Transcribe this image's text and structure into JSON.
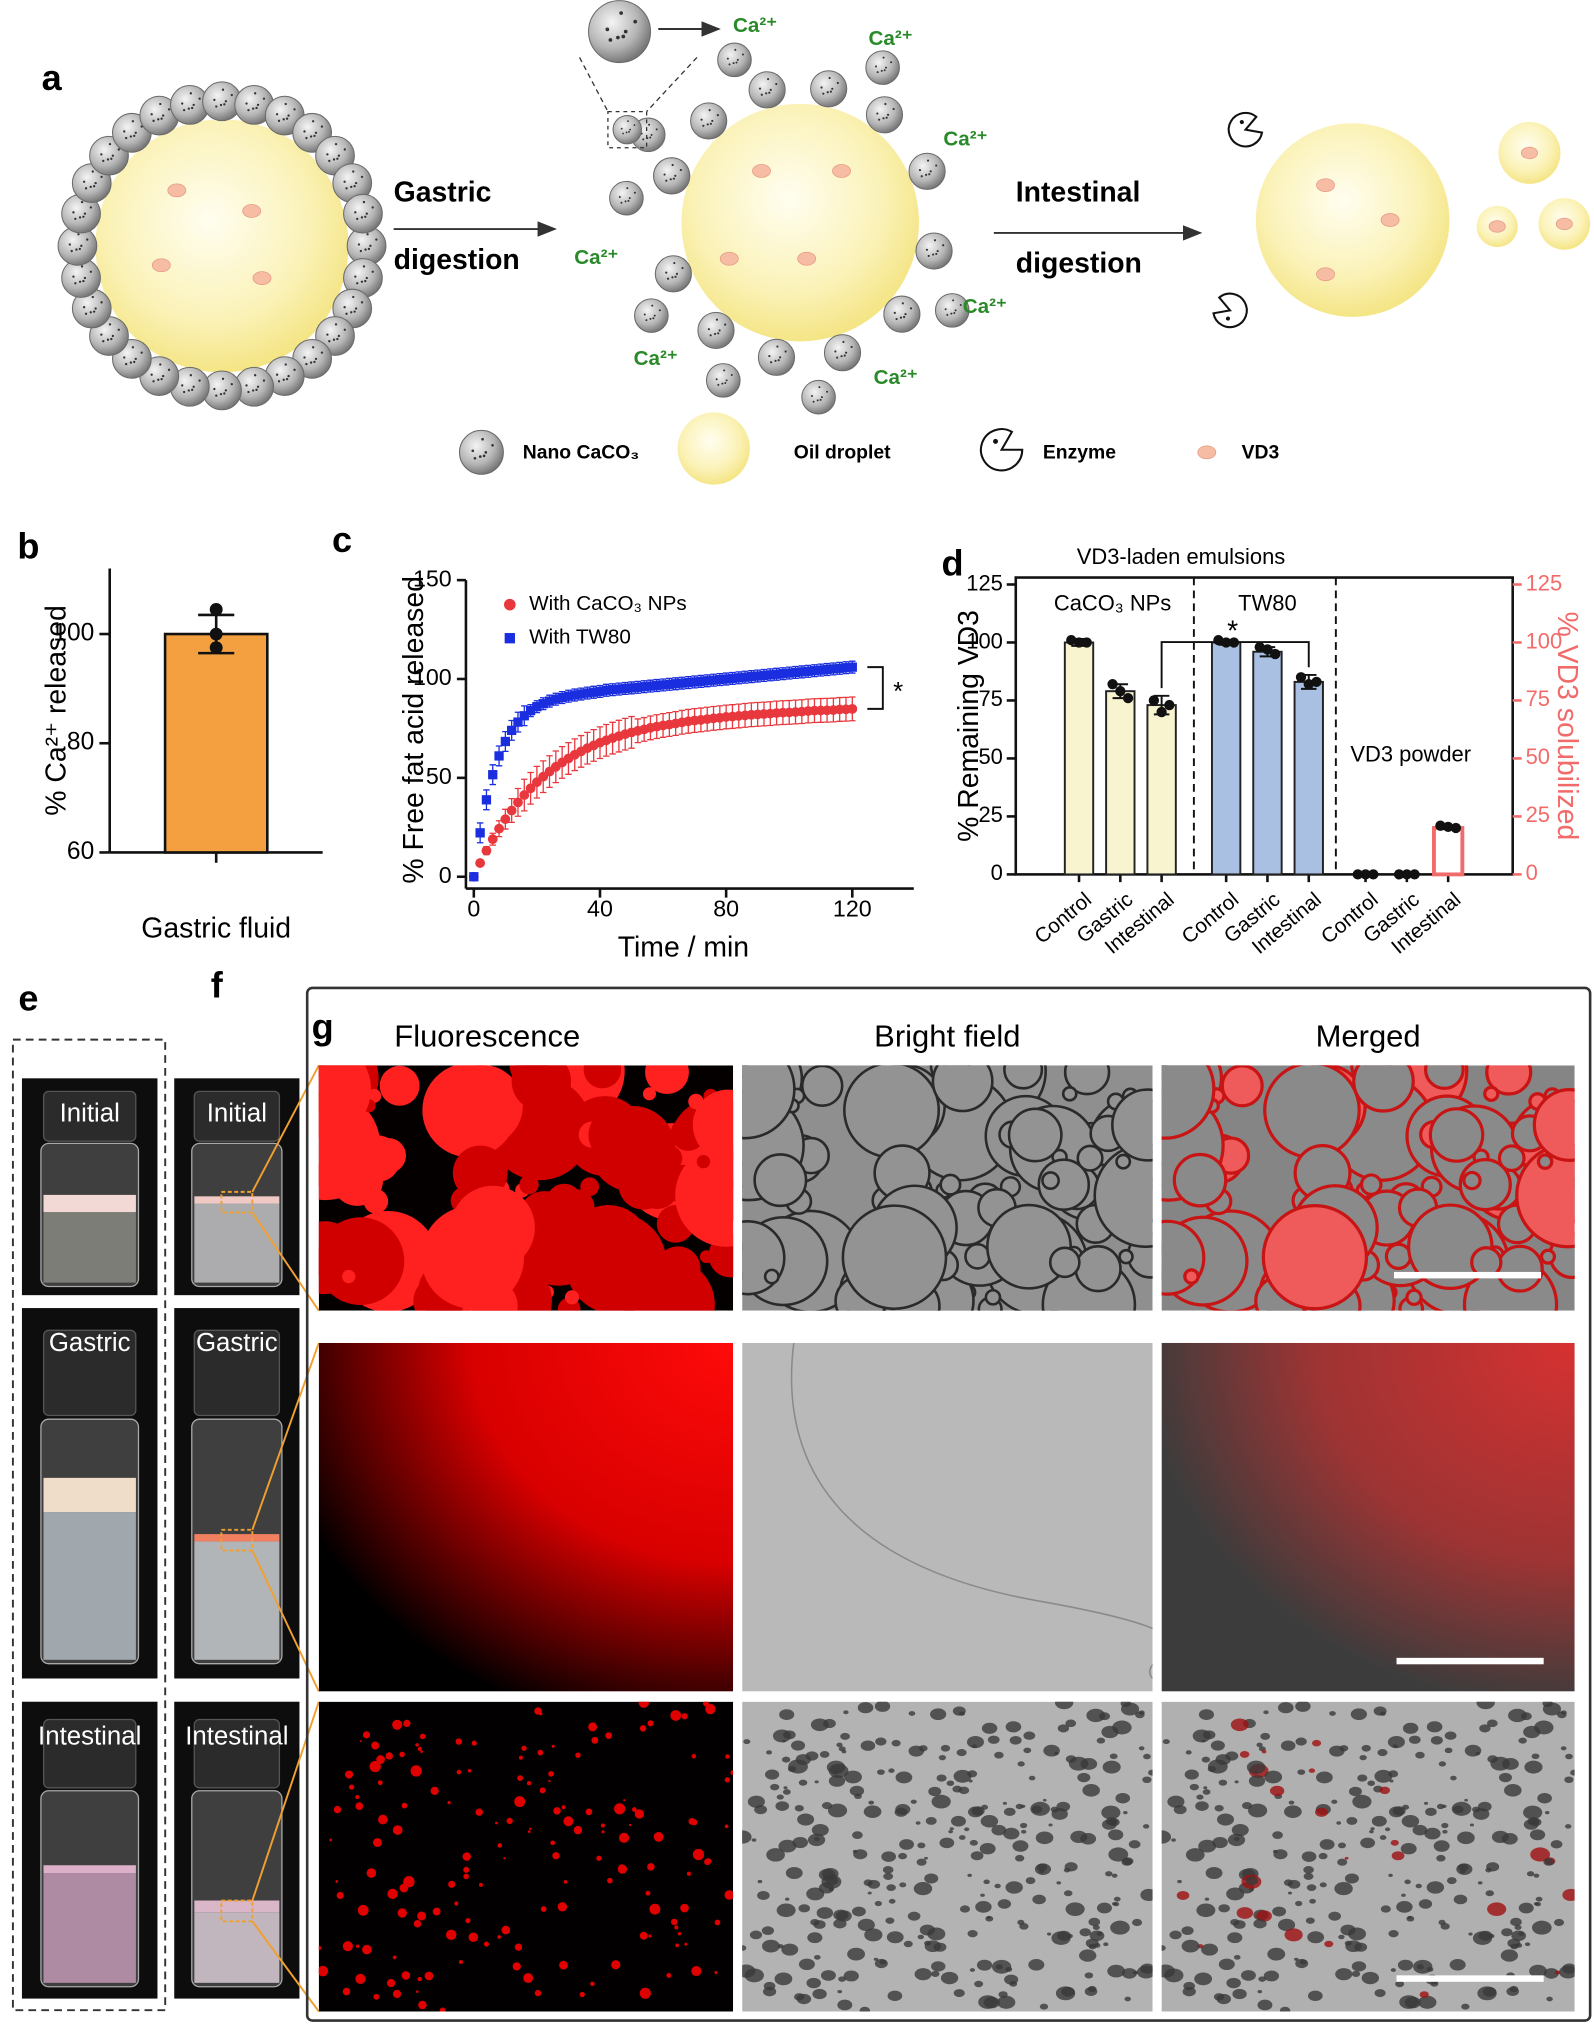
{
  "panel_labels": [
    "a",
    "b",
    "c",
    "d",
    "e",
    "f",
    "g"
  ],
  "schematic": {
    "gastric_step": [
      "Gastric",
      "digestion"
    ],
    "intestinal_step": [
      "Intestinal",
      "digestion"
    ],
    "ion": "Ca²⁺",
    "legend": [
      "Nano CaCO₃",
      "Oil droplet",
      "Enzyme",
      "VD3"
    ]
  },
  "chart_data": [
    {
      "type": "bar",
      "ylabel": "% Ca²⁺ released",
      "categories": [
        "Gastric fluid"
      ],
      "values": [
        100
      ],
      "errors": [
        3.5
      ],
      "points": [
        [
          104.5,
          97.5,
          100
        ]
      ],
      "color": "#f5a040",
      "ylim": [
        60,
        112
      ],
      "yticks": [
        60,
        80,
        100
      ]
    },
    {
      "type": "line",
      "ylabel": "% Free fat acid released",
      "xlabel": "Time / min",
      "x": [
        0,
        2,
        4,
        6,
        8,
        10,
        12,
        14,
        16,
        18,
        20,
        22,
        24,
        26,
        28,
        30,
        32,
        34,
        36,
        38,
        40,
        42,
        44,
        46,
        48,
        50,
        52,
        54,
        56,
        58,
        60,
        62,
        64,
        66,
        68,
        70,
        72,
        74,
        76,
        78,
        80,
        82,
        84,
        86,
        88,
        90,
        92,
        94,
        96,
        98,
        100,
        102,
        104,
        106,
        108,
        110,
        112,
        114,
        116,
        118,
        120
      ],
      "series": [
        {
          "name": "With CaCO₃ NPs",
          "color": "#e8383d",
          "marker": "circle",
          "values": [
            0,
            6.9,
            13.2,
            19.0,
            24.3,
            29.1,
            33.5,
            37.6,
            41.3,
            44.7,
            47.8,
            50.6,
            53.2,
            55.6,
            57.8,
            59.8,
            61.7,
            63.4,
            65.0,
            66.4,
            67.8,
            69.0,
            70.1,
            71.1,
            72.1,
            73.0,
            73.8,
            74.5,
            75.3,
            75.9,
            76.5,
            77.0,
            77.5,
            78.1,
            78.6,
            79.0,
            79.3,
            79.7,
            80.1,
            80.4,
            80.8,
            81.0,
            81.3,
            81.6,
            81.9,
            82.1,
            82.3,
            82.5,
            82.8,
            83.0,
            83.1,
            83.3,
            83.5,
            83.8,
            84.0,
            84.1,
            84.2,
            84.3,
            84.6,
            84.7,
            84.9
          ],
          "errors": [
            0,
            1,
            2,
            3,
            4,
            5,
            6,
            7,
            8,
            8,
            8,
            8,
            8,
            8,
            8,
            8,
            8,
            8,
            8,
            8,
            8,
            8,
            8,
            8,
            8,
            8,
            6,
            6,
            6,
            6,
            6,
            6,
            6,
            6,
            6,
            6,
            6,
            6,
            6,
            6,
            6,
            6,
            6,
            6,
            6,
            6,
            6,
            6,
            6,
            6,
            6,
            6,
            6,
            6,
            6,
            6,
            6,
            6,
            6,
            6,
            6
          ]
        },
        {
          "name": "With TW80",
          "color": "#1a2ee0",
          "marker": "square",
          "values": [
            0,
            22.2,
            38.9,
            51.6,
            61.1,
            68.4,
            74.0,
            78.2,
            81.4,
            84.0,
            86.0,
            87.5,
            88.8,
            89.8,
            90.6,
            91.3,
            91.9,
            92.4,
            92.9,
            93.3,
            93.7,
            94.3,
            94.6,
            94.9,
            95.2,
            95.5,
            95.8,
            96.1,
            96.4,
            96.7,
            97.0,
            97.3,
            97.6,
            97.9,
            98.2,
            98.5,
            98.8,
            99.1,
            99.4,
            99.7,
            100.0,
            100.3,
            100.6,
            100.9,
            101.2,
            101.5,
            101.8,
            102.1,
            102.4,
            102.7,
            103.0,
            103.3,
            103.6,
            103.9,
            104.2,
            104.5,
            104.8,
            105.1,
            105.4,
            105.7,
            106.0
          ],
          "errors": [
            0,
            5,
            5,
            5,
            5,
            5,
            5,
            5,
            5,
            3,
            3,
            3,
            3,
            3,
            3,
            3,
            3,
            3,
            3,
            3,
            3,
            3,
            3,
            3,
            3,
            3,
            3,
            3,
            3,
            3,
            3,
            3,
            3,
            3,
            3,
            3,
            3,
            3,
            3,
            3,
            3,
            3,
            3,
            3,
            3,
            3,
            3,
            3,
            3,
            3,
            3,
            3,
            3,
            3,
            3,
            3,
            3,
            3,
            3,
            3,
            3
          ]
        }
      ],
      "xlim": [
        -2.5,
        139.5
      ],
      "ylim": [
        -6,
        150
      ],
      "xticks": [
        0,
        40,
        80,
        120
      ],
      "yticks": [
        0,
        50,
        100,
        150
      ],
      "annotations": [
        "*"
      ]
    },
    {
      "type": "bar",
      "title": "VD3-laden emulsions",
      "ylabel": "% Remaining VD3",
      "y2label": "% VD3 solubilized",
      "categories": [
        "Control",
        "Gastric",
        "Intestinal",
        "Control",
        "Gastric",
        "Intestinal",
        "Control",
        "Gastric",
        "Intestinal"
      ],
      "series": [
        {
          "name": "CaCO₃ NPs",
          "color": "#f8f4d0",
          "values": [
            100,
            79,
            73,
            null,
            null,
            null,
            null,
            null,
            null
          ],
          "errors": [
            1.5,
            3,
            4,
            null,
            null,
            null,
            null,
            null,
            null
          ],
          "points": [
            [
              101,
              100,
              100
            ],
            [
              82,
              79,
              76
            ],
            [
              75,
              70,
              73
            ],
            null,
            null,
            null,
            null,
            null,
            null
          ]
        },
        {
          "name": "TW80",
          "color": "#a9c0e2",
          "values": [
            null,
            null,
            null,
            100,
            96,
            83,
            null,
            null,
            null
          ],
          "errors": [
            null,
            null,
            null,
            1,
            2,
            3,
            null,
            null,
            null
          ],
          "points": [
            null,
            null,
            null,
            [
              101,
              100,
              100
            ],
            [
              98,
              97,
              95
            ],
            [
              85,
              82,
              83
            ],
            null,
            null,
            null
          ]
        },
        {
          "name": "VD3 powder",
          "color": "#f26b6b",
          "axis": "y2",
          "values": [
            null,
            null,
            null,
            null,
            null,
            null,
            0,
            0,
            20
          ],
          "errors": [
            null,
            null,
            null,
            null,
            null,
            null,
            0,
            0,
            0.5
          ],
          "points": [
            null,
            null,
            null,
            null,
            null,
            null,
            [
              0,
              0,
              0
            ],
            [
              0,
              0,
              0
            ],
            [
              21,
              20.5,
              20
            ]
          ]
        }
      ],
      "ylim": [
        0,
        128
      ],
      "yticks": [
        0,
        25,
        50,
        75,
        100,
        125
      ],
      "y2lim": [
        0,
        128
      ],
      "y2ticks": [
        0,
        25,
        50,
        75,
        100,
        125
      ],
      "y2color": "#f26b6b",
      "annotations": [
        "*"
      ]
    }
  ],
  "photos": {
    "stages": [
      "Initial",
      "Gastric",
      "Intestinal"
    ]
  },
  "micrographs": {
    "columns": [
      "Fluorescence",
      "Bright field",
      "Merged"
    ]
  }
}
